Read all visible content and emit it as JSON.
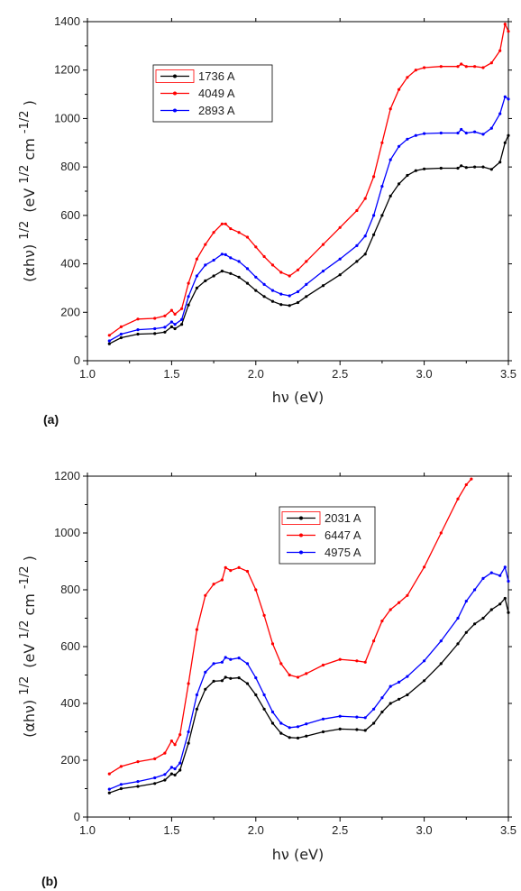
{
  "chart_data": [
    {
      "panel_label": "(a)",
      "type": "line",
      "xlabel": "hν (eV)",
      "ylabel_main": "(αhν)",
      "ylabel_exp": "1/2",
      "ylabel_units_prefix": "(eV",
      "ylabel_units_exp1": "1/2",
      "ylabel_units_mid": "cm",
      "ylabel_units_exp2": "-1/2",
      "ylabel_units_suffix": ")",
      "xlim": [
        1.0,
        3.5
      ],
      "ylim": [
        0,
        1400
      ],
      "xticks": [
        "1.0",
        "1.5",
        "2.0",
        "2.5",
        "3.0",
        "3.5"
      ],
      "yticks": [
        "0",
        "200",
        "400",
        "600",
        "800",
        "1000",
        "1200",
        "1400"
      ],
      "legend_position": "upper-left",
      "series": [
        {
          "name": "1736 A",
          "color": "#000000",
          "x": [
            1.13,
            1.2,
            1.3,
            1.4,
            1.46,
            1.5,
            1.52,
            1.56,
            1.6,
            1.65,
            1.7,
            1.75,
            1.8,
            1.85,
            1.9,
            1.95,
            2.0,
            2.05,
            2.1,
            2.15,
            2.2,
            2.25,
            2.3,
            2.4,
            2.5,
            2.6,
            2.65,
            2.7,
            2.75,
            2.8,
            2.85,
            2.9,
            2.95,
            3.0,
            3.1,
            3.2,
            3.22,
            3.25,
            3.3,
            3.35,
            3.4,
            3.45,
            3.48,
            3.5
          ],
          "y": [
            70,
            95,
            110,
            112,
            118,
            140,
            132,
            150,
            230,
            300,
            330,
            350,
            370,
            360,
            345,
            320,
            290,
            265,
            245,
            232,
            228,
            240,
            265,
            310,
            355,
            410,
            440,
            520,
            600,
            680,
            730,
            765,
            785,
            792,
            795,
            795,
            805,
            798,
            800,
            800,
            790,
            820,
            900,
            930
          ]
        },
        {
          "name": "4049 A",
          "color": "#ff0000",
          "x": [
            1.13,
            1.2,
            1.3,
            1.4,
            1.46,
            1.5,
            1.52,
            1.56,
            1.6,
            1.65,
            1.7,
            1.75,
            1.8,
            1.82,
            1.85,
            1.9,
            1.95,
            2.0,
            2.05,
            2.1,
            2.15,
            2.2,
            2.25,
            2.3,
            2.4,
            2.5,
            2.6,
            2.65,
            2.7,
            2.75,
            2.8,
            2.85,
            2.9,
            2.95,
            3.0,
            3.1,
            3.2,
            3.22,
            3.25,
            3.3,
            3.35,
            3.4,
            3.45,
            3.48,
            3.5
          ],
          "y": [
            105,
            140,
            172,
            175,
            185,
            208,
            192,
            215,
            320,
            420,
            480,
            530,
            565,
            565,
            545,
            530,
            510,
            470,
            430,
            395,
            365,
            350,
            375,
            410,
            480,
            550,
            620,
            670,
            760,
            900,
            1040,
            1120,
            1170,
            1200,
            1210,
            1215,
            1215,
            1225,
            1215,
            1215,
            1210,
            1230,
            1280,
            1390,
            1360
          ]
        },
        {
          "name": "2893 A",
          "color": "#0000ff",
          "x": [
            1.13,
            1.2,
            1.3,
            1.4,
            1.46,
            1.5,
            1.52,
            1.56,
            1.6,
            1.65,
            1.7,
            1.75,
            1.8,
            1.82,
            1.85,
            1.9,
            1.95,
            2.0,
            2.05,
            2.1,
            2.15,
            2.2,
            2.25,
            2.3,
            2.4,
            2.5,
            2.6,
            2.65,
            2.7,
            2.75,
            2.8,
            2.85,
            2.9,
            2.95,
            3.0,
            3.1,
            3.2,
            3.22,
            3.25,
            3.3,
            3.35,
            3.4,
            3.45,
            3.48,
            3.5
          ],
          "y": [
            82,
            110,
            128,
            132,
            138,
            160,
            150,
            170,
            265,
            350,
            395,
            415,
            440,
            438,
            425,
            410,
            380,
            345,
            315,
            290,
            275,
            268,
            285,
            315,
            370,
            420,
            475,
            515,
            600,
            720,
            830,
            885,
            915,
            930,
            938,
            940,
            940,
            955,
            940,
            945,
            935,
            960,
            1020,
            1090,
            1080
          ]
        }
      ]
    },
    {
      "panel_label": "(b)",
      "type": "line",
      "xlabel": "hν (eV)",
      "ylabel_main": "(αhν)",
      "ylabel_exp": "1/2",
      "ylabel_units_prefix": "(eV",
      "ylabel_units_exp1": "1/2",
      "ylabel_units_mid": "cm",
      "ylabel_units_exp2": "-1/2",
      "ylabel_units_suffix": ")",
      "xlim": [
        1.0,
        3.5
      ],
      "ylim": [
        0,
        1200
      ],
      "xticks": [
        "1.0",
        "1.5",
        "2.0",
        "2.5",
        "3.0",
        "3.5"
      ],
      "yticks": [
        "0",
        "200",
        "400",
        "600",
        "800",
        "1000",
        "1200"
      ],
      "legend_position": "upper-right",
      "series": [
        {
          "name": "2031 A",
          "color": "#000000",
          "x": [
            1.13,
            1.2,
            1.3,
            1.4,
            1.46,
            1.5,
            1.52,
            1.55,
            1.6,
            1.65,
            1.7,
            1.75,
            1.8,
            1.82,
            1.85,
            1.9,
            1.95,
            2.0,
            2.05,
            2.1,
            2.15,
            2.2,
            2.25,
            2.3,
            2.4,
            2.5,
            2.6,
            2.65,
            2.7,
            2.75,
            2.8,
            2.85,
            2.9,
            3.0,
            3.1,
            3.2,
            3.25,
            3.3,
            3.35,
            3.4,
            3.45,
            3.48,
            3.5
          ],
          "y": [
            85,
            100,
            108,
            118,
            130,
            152,
            148,
            165,
            260,
            380,
            450,
            478,
            480,
            492,
            488,
            490,
            470,
            430,
            380,
            330,
            295,
            280,
            278,
            285,
            300,
            310,
            308,
            305,
            330,
            370,
            400,
            415,
            430,
            480,
            540,
            610,
            650,
            680,
            700,
            730,
            750,
            770,
            720
          ]
        },
        {
          "name": "6447 A",
          "color": "#ff0000",
          "x": [
            1.13,
            1.2,
            1.3,
            1.4,
            1.46,
            1.5,
            1.52,
            1.55,
            1.6,
            1.65,
            1.7,
            1.75,
            1.8,
            1.82,
            1.85,
            1.9,
            1.95,
            2.0,
            2.05,
            2.1,
            2.15,
            2.2,
            2.25,
            2.3,
            2.4,
            2.5,
            2.6,
            2.65,
            2.7,
            2.75,
            2.8,
            2.85,
            2.9,
            3.0,
            3.1,
            3.2,
            3.25,
            3.28
          ],
          "y": [
            152,
            178,
            195,
            205,
            225,
            268,
            255,
            290,
            470,
            660,
            780,
            820,
            835,
            878,
            868,
            878,
            865,
            800,
            710,
            610,
            540,
            500,
            492,
            505,
            535,
            555,
            550,
            545,
            620,
            690,
            730,
            755,
            780,
            880,
            1000,
            1120,
            1170,
            1190
          ]
        },
        {
          "name": "4975 A",
          "color": "#0000ff",
          "x": [
            1.13,
            1.2,
            1.3,
            1.4,
            1.46,
            1.5,
            1.52,
            1.55,
            1.6,
            1.65,
            1.7,
            1.75,
            1.8,
            1.82,
            1.85,
            1.9,
            1.95,
            2.0,
            2.05,
            2.1,
            2.15,
            2.2,
            2.25,
            2.3,
            2.4,
            2.5,
            2.6,
            2.65,
            2.7,
            2.75,
            2.8,
            2.85,
            2.9,
            3.0,
            3.1,
            3.2,
            3.25,
            3.3,
            3.35,
            3.4,
            3.45,
            3.48,
            3.5
          ],
          "y": [
            98,
            115,
            125,
            138,
            150,
            175,
            170,
            190,
            300,
            430,
            510,
            540,
            545,
            562,
            555,
            560,
            540,
            490,
            430,
            370,
            330,
            315,
            318,
            328,
            345,
            355,
            352,
            350,
            380,
            420,
            460,
            475,
            495,
            550,
            620,
            700,
            760,
            800,
            840,
            860,
            850,
            880,
            830
          ]
        }
      ]
    }
  ]
}
